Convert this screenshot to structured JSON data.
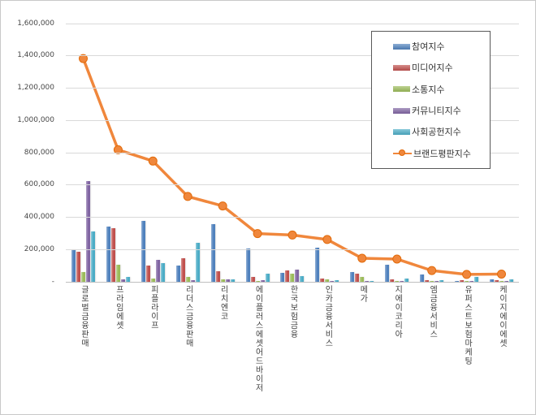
{
  "chart_data": {
    "type": "bar",
    "subtype": "grouped-bars-with-line-overlay",
    "title": "",
    "xlabel": "",
    "ylabel": "",
    "ylim": [
      0,
      1600000
    ],
    "y_tick_step": 200000,
    "y_tick_labels": [
      "-",
      "200,000",
      "400,000",
      "600,000",
      "800,000",
      "1,000,000",
      "1,200,000",
      "1,400,000",
      "1,600,000"
    ],
    "grid": true,
    "legend_position": "inside-top-right",
    "categories": [
      "글로벌금융판매",
      "프라임에셋",
      "피플라이프",
      "리더스금융판매",
      "리치엔코",
      "에이플러스에셋어드바이저",
      "한국보험금융",
      "인카금융서비스",
      "메가",
      "지에이코리아",
      "엠금융서비스",
      "유퍼스트보험마케팅",
      "케이지에이에셋"
    ],
    "series": [
      {
        "key": "participation-index",
        "name": "참여지수",
        "type": "bar",
        "color": "#4F81BD",
        "values": [
          200000,
          340000,
          375000,
          100000,
          358000,
          205000,
          57000,
          212000,
          61000,
          104000,
          43000,
          6000,
          16000
        ]
      },
      {
        "key": "media-index",
        "name": "미디어지수",
        "type": "bar",
        "color": "#C0504D",
        "values": [
          186000,
          330000,
          100000,
          145000,
          68000,
          28000,
          70000,
          18000,
          51000,
          15000,
          12000,
          8000,
          10000
        ]
      },
      {
        "key": "communication-index",
        "name": "소통지수",
        "type": "bar",
        "color": "#9BBB59",
        "values": [
          62000,
          105000,
          22000,
          30000,
          14000,
          5000,
          50000,
          14000,
          30000,
          2000,
          3000,
          2000,
          5000
        ]
      },
      {
        "key": "community-index",
        "name": "커뮤니티지수",
        "type": "bar",
        "color": "#8064A2",
        "values": [
          625000,
          15000,
          137000,
          12000,
          16000,
          12000,
          77000,
          6000,
          2000,
          2000,
          3000,
          2000,
          2000
        ]
      },
      {
        "key": "social-contribution-index",
        "name": "사회공헌지수",
        "type": "bar",
        "color": "#4BACC6",
        "values": [
          310000,
          28000,
          114000,
          242000,
          14000,
          49000,
          36000,
          12000,
          2000,
          18000,
          9000,
          28000,
          15000
        ]
      },
      {
        "key": "brand-reputation-index",
        "name": "브랜드평판지수",
        "type": "line",
        "color": "#F0873C",
        "marker_border": "#E26B0A",
        "values": [
          1383000,
          818000,
          748000,
          529000,
          470000,
          299000,
          290000,
          262000,
          146000,
          141000,
          70000,
          46000,
          48000
        ]
      }
    ]
  },
  "colors": {
    "gridline": "#d9d9d9",
    "baseline": "#bfbfbf",
    "axis_text": "#474747",
    "category_text": "#404040",
    "legend_border": "#595959",
    "background": "#ffffff"
  }
}
